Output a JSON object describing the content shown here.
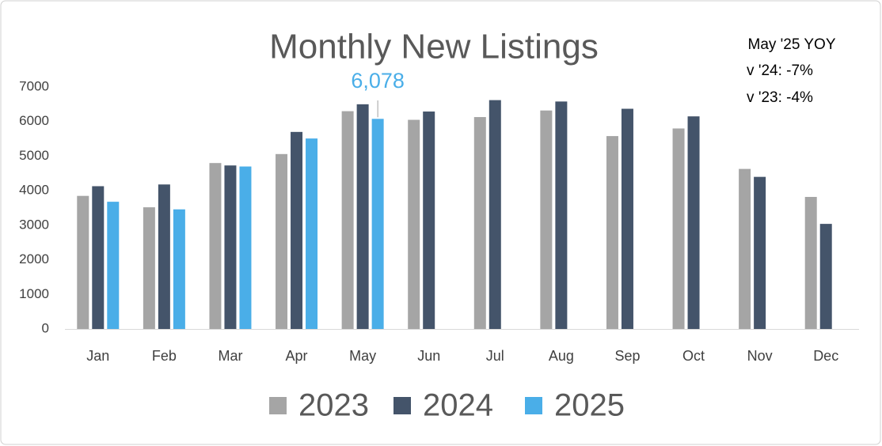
{
  "chart_data": {
    "type": "bar",
    "title": "Monthly New Listings",
    "annotations": [
      "May '25 YOY",
      "v '24: -7%",
      "v '23: -4%"
    ],
    "categories": [
      "Jan",
      "Feb",
      "Mar",
      "Apr",
      "May",
      "Jun",
      "Jul",
      "Aug",
      "Sep",
      "Oct",
      "Nov",
      "Dec"
    ],
    "series": [
      {
        "name": "2023",
        "color": "#a5a5a5",
        "values": [
          3850,
          3520,
          4800,
          5060,
          6300,
          6050,
          6130,
          6320,
          5580,
          5800,
          4630,
          3820
        ]
      },
      {
        "name": "2024",
        "color": "#44546a",
        "values": [
          4130,
          4180,
          4730,
          5700,
          6500,
          6290,
          6620,
          6580,
          6370,
          6150,
          4400,
          3040
        ]
      },
      {
        "name": "2025",
        "color": "#4aaee8",
        "values": [
          3680,
          3460,
          4700,
          5510,
          6078,
          null,
          null,
          null,
          null,
          null,
          null,
          null
        ],
        "value_labels": [
          null,
          null,
          null,
          null,
          "6,078",
          null,
          null,
          null,
          null,
          null,
          null,
          null
        ]
      }
    ],
    "ylim": [
      0,
      7000
    ],
    "yticks": [
      0,
      1000,
      2000,
      3000,
      4000,
      5000,
      6000,
      7000
    ],
    "grid": false,
    "legend": "bottom"
  }
}
